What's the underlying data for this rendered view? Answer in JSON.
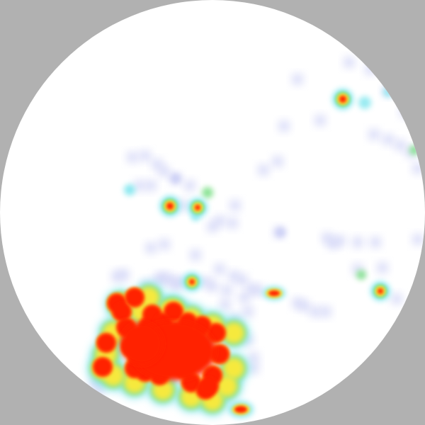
{
  "colors": {
    "surround": "#b1b1b1",
    "field": "#ffffff",
    "faint": "#c9cdf5",
    "cyan": "#7fe6ee",
    "green": "#7fe08a",
    "yellow": "#f6e93c",
    "orange": "#ff9a1c",
    "red": "#ff2200"
  },
  "heatmap": {
    "shape": "circle",
    "color_scale": [
      "faint-blue",
      "cyan",
      "green",
      "yellow",
      "orange",
      "red"
    ]
  }
}
